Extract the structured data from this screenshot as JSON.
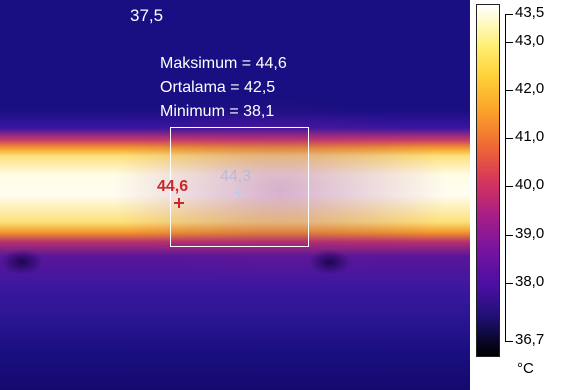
{
  "image": {
    "top_value": "37,5",
    "stats": {
      "max_line": "Maksimum = 44,6",
      "avg_line": "Ortalama = 42,5",
      "min_line": "Minimum = 38,1"
    },
    "markers": {
      "hot_point": "44,6",
      "center_point": "44,3"
    }
  },
  "scale": {
    "labels": [
      "43,5",
      "43,0",
      "42,0",
      "41,0",
      "40,0",
      "39,0",
      "38,0",
      "36,7"
    ],
    "unit": "°C"
  },
  "colors": {
    "hot_marker": "#c8282a",
    "center_marker": "#c8c8e6"
  }
}
